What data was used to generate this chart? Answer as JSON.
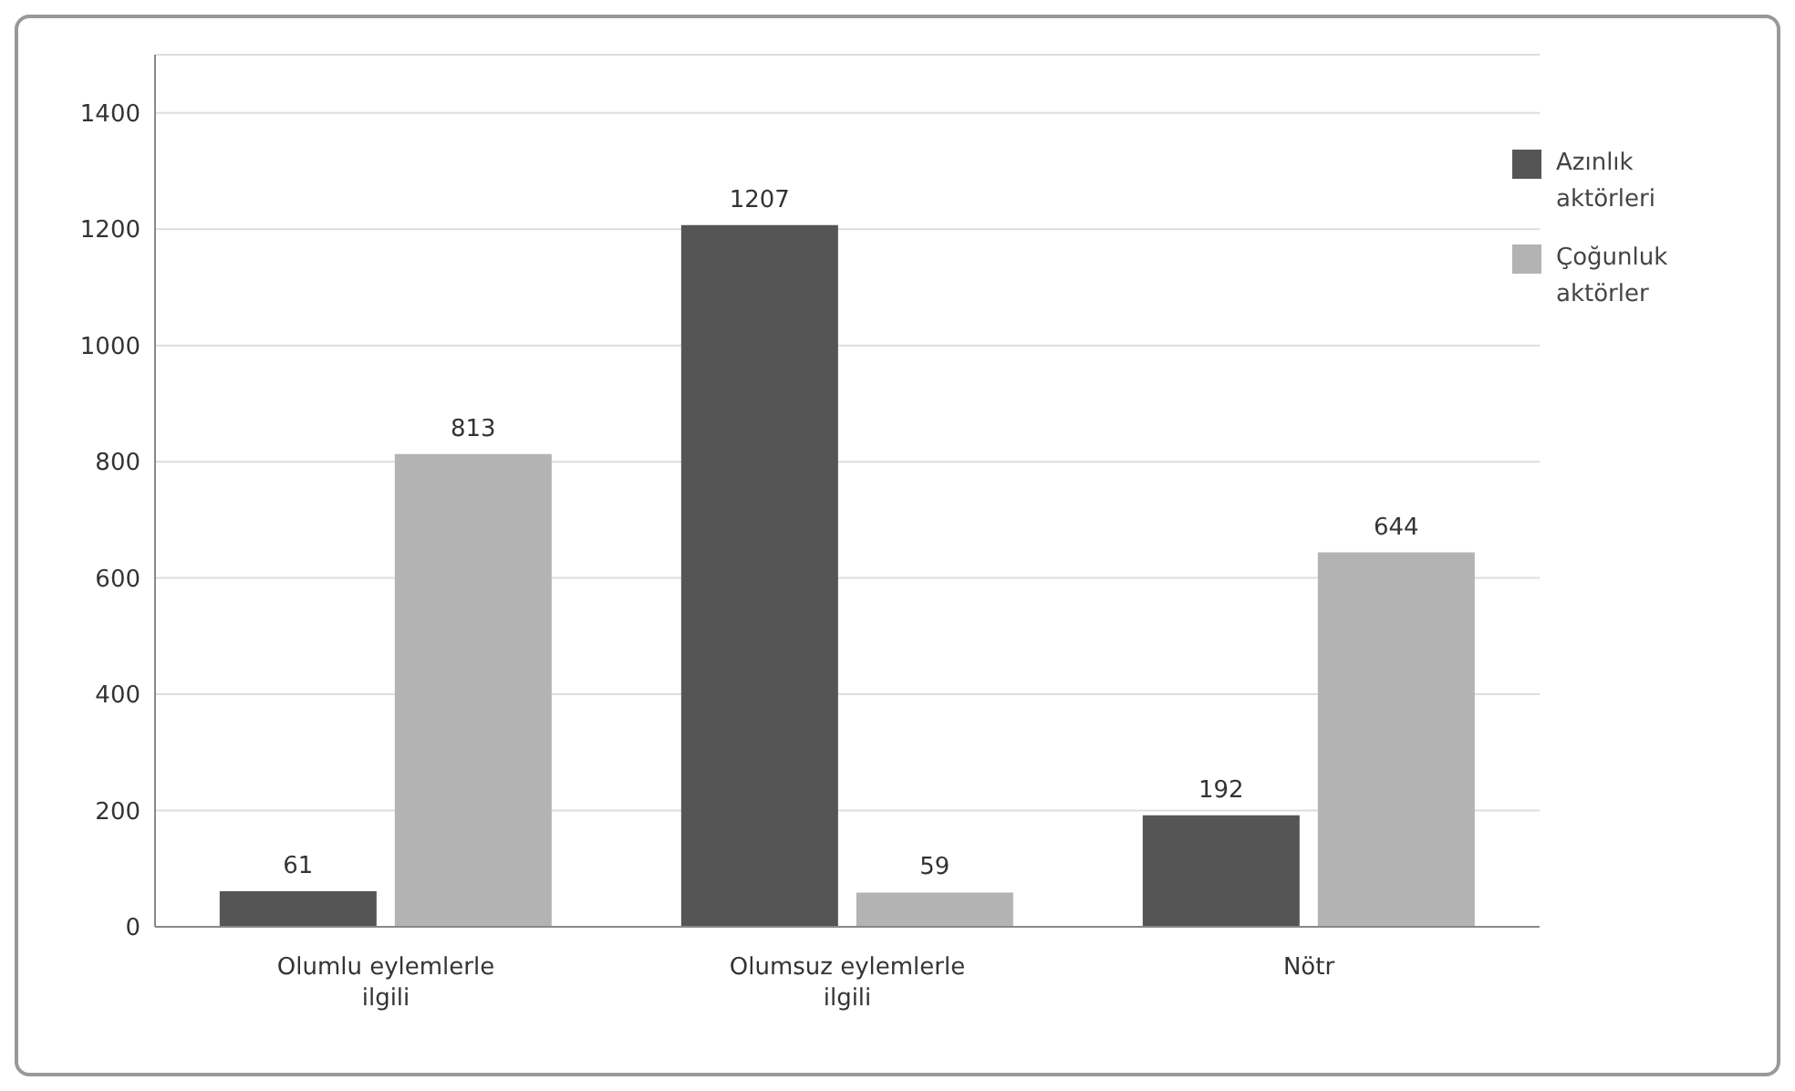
{
  "chart_data": {
    "type": "bar",
    "categories": [
      "Olumlu eylemlerle ilgili",
      "Olumsuz eylemlerle ilgili",
      "Nötr"
    ],
    "series": [
      {
        "name": "Azınlık aktörleri",
        "color": "#555555",
        "values": [
          61,
          1207,
          192
        ]
      },
      {
        "name": "Çoğunluk aktörler",
        "color": "#b3b3b3",
        "values": [
          813,
          59,
          644
        ]
      }
    ],
    "ylim": [
      0,
      1500
    ],
    "yticks": [
      0,
      200,
      400,
      600,
      800,
      1000,
      1200,
      1400
    ],
    "grid": "y",
    "legend": "top right",
    "data_labels": true
  }
}
